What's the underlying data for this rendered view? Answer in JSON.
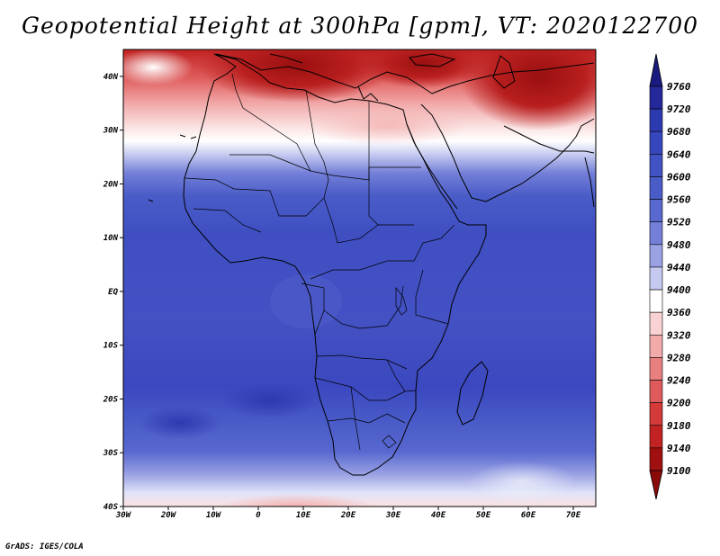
{
  "title": "Geopotential Height at 300hPa [gpm], VT: 2020122700",
  "footer": "GrADS: IGES/COLA",
  "map": {
    "lon_range": [
      -30,
      75
    ],
    "lat_range": [
      -40,
      45
    ],
    "lon_labels": [
      {
        "lon": -30,
        "text": "30W"
      },
      {
        "lon": -20,
        "text": "20W"
      },
      {
        "lon": -10,
        "text": "10W"
      },
      {
        "lon": 0,
        "text": "0"
      },
      {
        "lon": 10,
        "text": "10E"
      },
      {
        "lon": 20,
        "text": "20E"
      },
      {
        "lon": 30,
        "text": "30E"
      },
      {
        "lon": 40,
        "text": "40E"
      },
      {
        "lon": 50,
        "text": "50E"
      },
      {
        "lon": 60,
        "text": "60E"
      },
      {
        "lon": 70,
        "text": "70E"
      }
    ],
    "lat_labels": [
      {
        "lat": 40,
        "text": "40N"
      },
      {
        "lat": 30,
        "text": "30N"
      },
      {
        "lat": 20,
        "text": "20N"
      },
      {
        "lat": 10,
        "text": "10N"
      },
      {
        "lat": 0,
        "text": "EQ"
      },
      {
        "lat": -10,
        "text": "10S"
      },
      {
        "lat": -20,
        "text": "20S"
      },
      {
        "lat": -30,
        "text": "30S"
      },
      {
        "lat": -40,
        "text": "40S"
      }
    ]
  },
  "colorbar": {
    "levels": [
      "9760",
      "9720",
      "9680",
      "9640",
      "9600",
      "9560",
      "9520",
      "9480",
      "9440",
      "9400",
      "9360",
      "9320",
      "9280",
      "9240",
      "9200",
      "9180",
      "9140",
      "9100"
    ],
    "colors": [
      "#1a1a80",
      "#24289a",
      "#2d3aaf",
      "#3647bd",
      "#4152c4",
      "#4a5cc8",
      "#5868cf",
      "#7480d8",
      "#9aa2e4",
      "#c6caf0",
      "#ffffff",
      "#f9d3d3",
      "#f2aaaa",
      "#e98080",
      "#df5a5a",
      "#d43a3a",
      "#c22222",
      "#a01010",
      "#8a0a0a"
    ]
  },
  "chart_data": {
    "type": "heatmap",
    "title": "Geopotential Height at 300hPa [gpm], VT: 2020122700",
    "variable": "Geopotential Height",
    "level": "300hPa",
    "units": "gpm",
    "valid_time": "2020122700",
    "x_range": [
      -30,
      75
    ],
    "y_range": [
      -40,
      45
    ],
    "contour_levels": [
      9100,
      9140,
      9180,
      9200,
      9240,
      9280,
      9320,
      9360,
      9400,
      9440,
      9480,
      9520,
      9560,
      9600,
      9640,
      9680,
      9720,
      9760
    ],
    "zonal_profile": [
      {
        "lat": 45,
        "value": 9150
      },
      {
        "lat": 40,
        "value": 9240
      },
      {
        "lat": 35,
        "value": 9320
      },
      {
        "lat": 30,
        "value": 9400
      },
      {
        "lat": 25,
        "value": 9520
      },
      {
        "lat": 20,
        "value": 9600
      },
      {
        "lat": 15,
        "value": 9640
      },
      {
        "lat": 10,
        "value": 9660
      },
      {
        "lat": 0,
        "value": 9660
      },
      {
        "lat": -10,
        "value": 9670
      },
      {
        "lat": -20,
        "value": 9690
      },
      {
        "lat": -30,
        "value": 9600
      },
      {
        "lat": -35,
        "value": 9500
      },
      {
        "lat": -40,
        "value": 9380
      }
    ]
  }
}
